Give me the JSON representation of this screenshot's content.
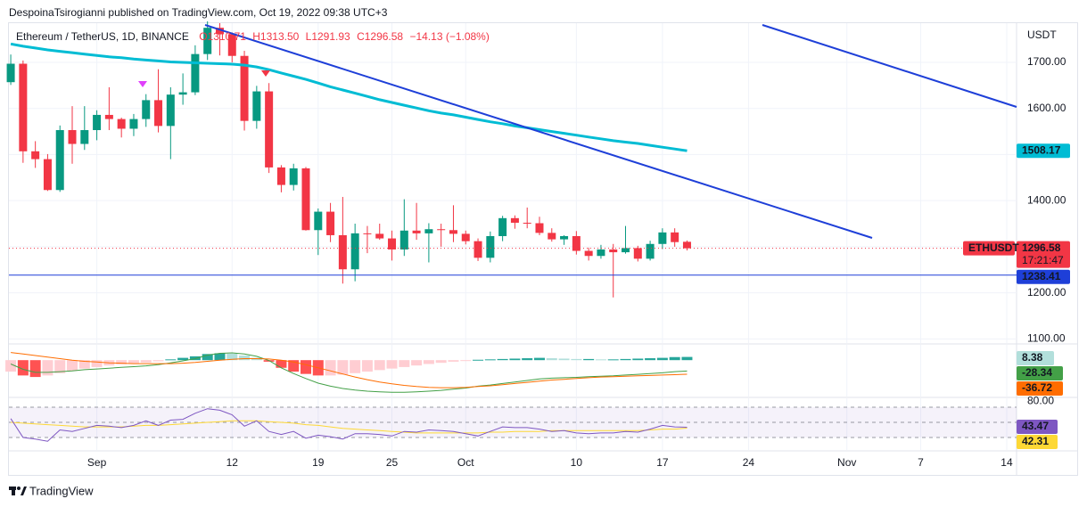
{
  "header": {
    "publisher": "DespoinaTsirogianni published on TradingView.com, Oct 19, 2022 09:38 UTC+3",
    "footer": "TradingView"
  },
  "chart_data": [
    {
      "type": "candlestick",
      "title": "Ethereum / TetherUS, 1D, BINANCE",
      "ohlc_legend": [
        "O1310.71",
        "H1313.50",
        "L1291.93",
        "C1296.58",
        "−14.13 (−1.08%)"
      ],
      "currency": "USDT",
      "price_tag": "ETHUSDT",
      "countdown": "17:21:47",
      "open": [
        1657,
        1697,
        1507,
        1490,
        1423,
        1553,
        1523,
        1553,
        1586,
        1577,
        1556,
        1577,
        1618,
        1562,
        1630,
        1635,
        1718,
        1775,
        1761,
        1714,
        1573,
        1637,
        1472,
        1434,
        1470,
        1336,
        1376,
        1325,
        1251,
        1329,
        1328,
        1318,
        1294,
        1335,
        1329,
        1338,
        1336,
        1328,
        1312,
        1276,
        1323,
        1362,
        1352,
        1351,
        1330,
        1316,
        1323,
        1291,
        1280,
        1294,
        1288,
        1297,
        1274,
        1306,
        1331,
        1310.71
      ],
      "high": [
        1717,
        1704,
        1529,
        1501,
        1563,
        1605,
        1605,
        1596,
        1646,
        1580,
        1588,
        1631,
        1685,
        1646,
        1676,
        1737,
        1789,
        1785,
        1765,
        1725,
        1649,
        1655,
        1477,
        1480,
        1473,
        1383,
        1395,
        1408,
        1350,
        1345,
        1350,
        1335,
        1403,
        1395,
        1351,
        1350,
        1390,
        1335,
        1318,
        1333,
        1367,
        1368,
        1385,
        1365,
        1340,
        1325,
        1334,
        1298,
        1304,
        1306,
        1345,
        1302,
        1313,
        1340,
        1340,
        1313.5
      ],
      "low": [
        1651,
        1482,
        1471,
        1421,
        1419,
        1480,
        1510,
        1531,
        1553,
        1537,
        1540,
        1560,
        1548,
        1490,
        1608,
        1629,
        1705,
        1715,
        1700,
        1552,
        1556,
        1460,
        1418,
        1422,
        1335,
        1282,
        1310,
        1220,
        1225,
        1286,
        1315,
        1270,
        1280,
        1315,
        1266,
        1300,
        1310,
        1305,
        1269,
        1266,
        1312,
        1339,
        1340,
        1325,
        1311,
        1304,
        1283,
        1270,
        1274,
        1190,
        1285,
        1268,
        1270,
        1295,
        1300,
        1291.93
      ],
      "close": [
        1697,
        1507,
        1490,
        1423,
        1553,
        1523,
        1553,
        1586,
        1577,
        1556,
        1577,
        1618,
        1562,
        1630,
        1635,
        1718,
        1775,
        1761,
        1714,
        1573,
        1637,
        1472,
        1434,
        1470,
        1336,
        1376,
        1325,
        1251,
        1329,
        1328,
        1318,
        1294,
        1335,
        1329,
        1338,
        1336,
        1328,
        1312,
        1276,
        1323,
        1362,
        1352,
        1351,
        1330,
        1316,
        1323,
        1291,
        1280,
        1294,
        1288,
        1297,
        1274,
        1306,
        1331,
        1310,
        1296.58
      ],
      "up_color": "#089981",
      "down_color": "#f23645",
      "ylim": [
        1091,
        1785
      ],
      "yticks": [
        {
          "value": 1100,
          "label": "1100.00"
        },
        {
          "value": 1200,
          "label": "1200.00"
        },
        {
          "value": 1300,
          "label": "1300.00"
        },
        {
          "value": 1400,
          "label": "1400.00"
        },
        {
          "value": 1500,
          "label": "1500.00"
        },
        {
          "value": 1600,
          "label": "1600.00"
        },
        {
          "value": 1700,
          "label": "1700.00"
        }
      ],
      "xlim": [
        -0.15,
        81.8
      ],
      "xticks": [
        {
          "value": 7,
          "label": "Sep"
        },
        {
          "value": 18,
          "label": "12"
        },
        {
          "value": 25,
          "label": "19"
        },
        {
          "value": 31,
          "label": "25"
        },
        {
          "value": 37,
          "label": "Oct"
        },
        {
          "value": 46,
          "label": "10"
        },
        {
          "value": 53,
          "label": "17"
        },
        {
          "value": 60,
          "label": "24"
        },
        {
          "value": 68,
          "label": "Nov"
        },
        {
          "value": 74,
          "label": "7"
        },
        {
          "value": 81,
          "label": "14"
        }
      ],
      "grid": true,
      "moving_average": {
        "color": "#00bcd4",
        "values": [
          1740,
          1735,
          1731,
          1727,
          1724,
          1721,
          1718,
          1715,
          1712,
          1710,
          1707,
          1705,
          1703,
          1701,
          1700,
          1699,
          1698,
          1697,
          1696,
          1694,
          1690,
          1684,
          1677,
          1670,
          1663,
          1655,
          1647,
          1640,
          1633,
          1626,
          1619,
          1613,
          1607,
          1601,
          1595,
          1590,
          1586,
          1581,
          1576,
          1571,
          1567,
          1562,
          1558,
          1554,
          1550,
          1546,
          1542,
          1538,
          1534,
          1530,
          1527,
          1524,
          1520,
          1516,
          1512,
          1508.17
        ]
      },
      "horizontal_line": {
        "value": 1238.41,
        "color": "#1e3fd8"
      }
    },
    {
      "type": "macd",
      "ylim": [
        -95,
        40
      ],
      "histogram": {
        "colors": [
          "#26a69a",
          "#b2dfdb",
          "#ff5252",
          "#ffcdd2"
        ],
        "values": [
          -30,
          -40,
          -44,
          -40,
          -34,
          -28,
          -22,
          -18,
          -14,
          -11,
          -8,
          -6,
          -3,
          2,
          6,
          10,
          16,
          18,
          17,
          12,
          6,
          -4,
          -20,
          -30,
          -36,
          -40,
          -40,
          -38,
          -34,
          -30,
          -26,
          -22,
          -18,
          -14,
          -10,
          -7,
          -4,
          -2,
          1,
          2,
          3,
          4,
          5,
          6,
          5,
          4,
          3,
          3,
          2,
          2,
          3,
          4,
          5,
          6,
          8,
          8.38
        ]
      },
      "macd": {
        "color": "#43a047",
        "values": [
          -10,
          -24,
          -32,
          -32,
          -30,
          -28,
          -25,
          -23,
          -21,
          -19,
          -17,
          -15,
          -12,
          -7,
          -2,
          4,
          13,
          18,
          19,
          16,
          10,
          -1,
          -20,
          -35,
          -48,
          -60,
          -68,
          -74,
          -78,
          -81,
          -83,
          -84,
          -84,
          -83,
          -81,
          -79,
          -76,
          -73,
          -68,
          -65,
          -61,
          -57,
          -53,
          -49,
          -47,
          -46,
          -45,
          -43,
          -42,
          -41,
          -39,
          -37,
          -35,
          -33,
          -30,
          -28.34
        ]
      },
      "signal": {
        "color": "#ff6d00",
        "values": [
          20,
          16,
          12,
          8,
          4,
          0,
          -3,
          -5,
          -7,
          -8,
          -9,
          -9,
          -9,
          -9,
          -8,
          -6,
          -3,
          0,
          2,
          4,
          4,
          3,
          0,
          -5,
          -12,
          -20,
          -28,
          -36,
          -44,
          -51,
          -57,
          -62,
          -66,
          -69,
          -71,
          -72,
          -72,
          -71,
          -69,
          -67,
          -64,
          -61,
          -58,
          -55,
          -52,
          -50,
          -48,
          -46,
          -44,
          -43,
          -42,
          -41,
          -40,
          -39,
          -38,
          -36.72
        ]
      }
    },
    {
      "type": "rsi",
      "ylim": [
        13.5,
        81.8
      ],
      "yticks": [
        {
          "value": 80,
          "label": "80.00"
        }
      ],
      "bands": [
        70,
        50,
        30
      ],
      "rsi": {
        "color": "#7e57c2",
        "values": [
          55,
          30,
          28,
          25,
          40,
          38,
          42,
          46,
          45,
          43,
          46,
          52,
          46,
          53,
          54,
          62,
          68,
          66,
          60,
          45,
          52,
          38,
          34,
          38,
          29,
          33,
          31,
          28,
          35,
          35,
          34,
          32,
          38,
          37,
          40,
          39,
          38,
          35,
          32,
          38,
          44,
          43,
          43,
          41,
          38,
          39,
          36,
          35,
          36,
          36,
          38,
          37,
          41,
          46,
          44,
          43.47
        ]
      },
      "rsi_ma": {
        "color": "#fdd835",
        "values": [
          50,
          49,
          48,
          47,
          46,
          45,
          44,
          44,
          44,
          44,
          45,
          46,
          46,
          47,
          48,
          49,
          50,
          51,
          52,
          52,
          52,
          51,
          50,
          49,
          47,
          46,
          44,
          42,
          41,
          40,
          39,
          38,
          37,
          36,
          36,
          36,
          36,
          36,
          36,
          37,
          37,
          38,
          38,
          38,
          39,
          39,
          39,
          39,
          39,
          39,
          39,
          39,
          40,
          41,
          41,
          42.31
        ]
      }
    }
  ]
}
